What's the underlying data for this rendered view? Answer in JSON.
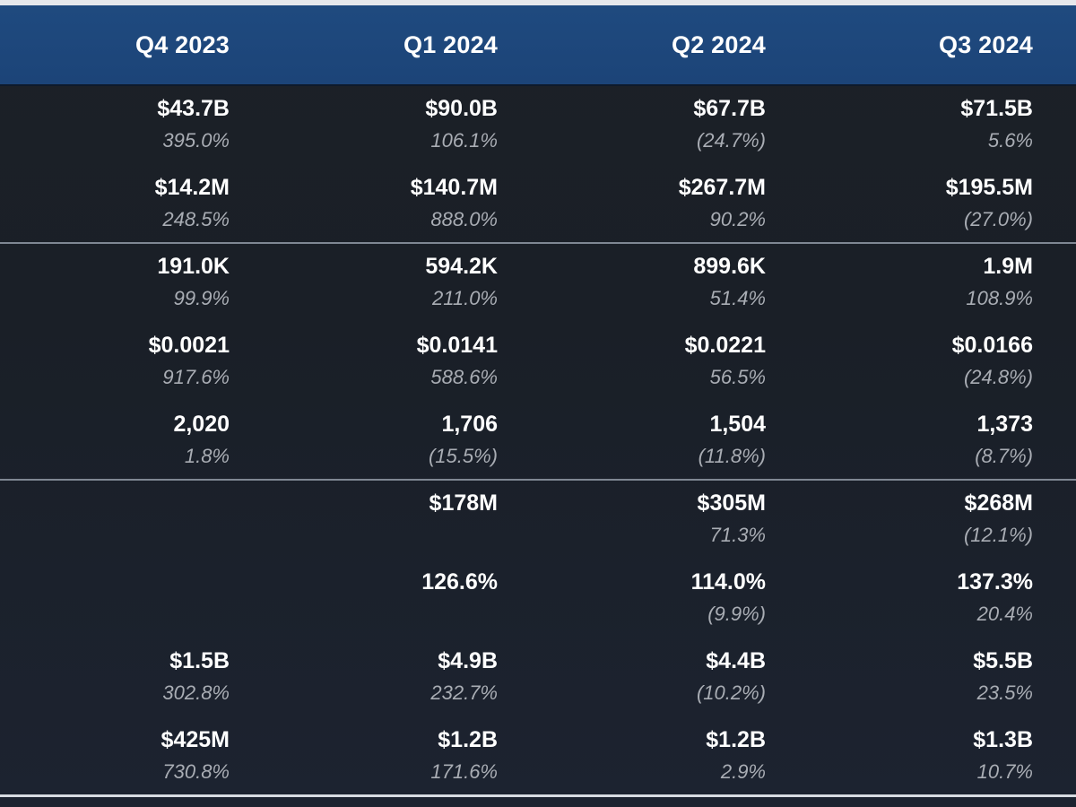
{
  "header": {
    "columns": [
      "Q4 2023",
      "Q1 2024",
      "Q2 2024",
      "Q3 2024"
    ]
  },
  "rows": [
    [
      {
        "value": "$43.7B",
        "change": "395.0%"
      },
      {
        "value": "$90.0B",
        "change": "106.1%"
      },
      {
        "value": "$67.7B",
        "change": "(24.7%)"
      },
      {
        "value": "$71.5B",
        "change": "5.6%"
      }
    ],
    [
      {
        "value": "$14.2M",
        "change": "248.5%"
      },
      {
        "value": "$140.7M",
        "change": "888.0%"
      },
      {
        "value": "$267.7M",
        "change": "90.2%"
      },
      {
        "value": "$195.5M",
        "change": "(27.0%)"
      }
    ],
    [
      {
        "value": "191.0K",
        "change": "99.9%"
      },
      {
        "value": "594.2K",
        "change": "211.0%"
      },
      {
        "value": "899.6K",
        "change": "51.4%"
      },
      {
        "value": "1.9M",
        "change": "108.9%"
      }
    ],
    [
      {
        "value": "$0.0021",
        "change": "917.6%"
      },
      {
        "value": "$0.0141",
        "change": "588.6%"
      },
      {
        "value": "$0.0221",
        "change": "56.5%"
      },
      {
        "value": "$0.0166",
        "change": "(24.8%)"
      }
    ],
    [
      {
        "value": "2,020",
        "change": "1.8%"
      },
      {
        "value": "1,706",
        "change": "(15.5%)"
      },
      {
        "value": "1,504",
        "change": "(11.8%)"
      },
      {
        "value": "1,373",
        "change": "(8.7%)"
      }
    ],
    [
      {
        "value": "",
        "change": ""
      },
      {
        "value": "$178M",
        "change": ""
      },
      {
        "value": "$305M",
        "change": "71.3%"
      },
      {
        "value": "$268M",
        "change": "(12.1%)"
      }
    ],
    [
      {
        "value": "",
        "change": ""
      },
      {
        "value": "126.6%",
        "change": ""
      },
      {
        "value": "114.0%",
        "change": "(9.9%)"
      },
      {
        "value": "137.3%",
        "change": "20.4%"
      }
    ],
    [
      {
        "value": "$1.5B",
        "change": "302.8%"
      },
      {
        "value": "$4.9B",
        "change": "232.7%"
      },
      {
        "value": "$4.4B",
        "change": "(10.2%)"
      },
      {
        "value": "$5.5B",
        "change": "23.5%"
      }
    ],
    [
      {
        "value": "$425M",
        "change": "730.8%"
      },
      {
        "value": "$1.2B",
        "change": "171.6%"
      },
      {
        "value": "$1.2B",
        "change": "2.9%"
      },
      {
        "value": "$1.3B",
        "change": "10.7%"
      }
    ]
  ]
}
